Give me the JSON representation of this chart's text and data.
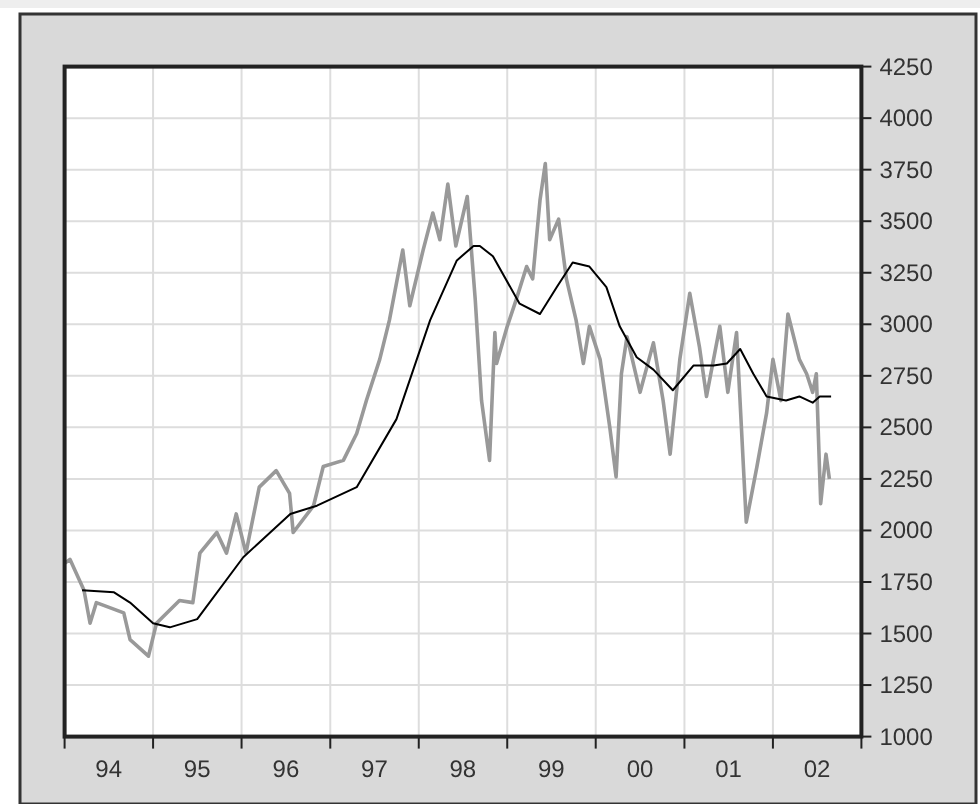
{
  "chart_data": {
    "type": "line",
    "xlim": [
      "1994-01-01",
      "2003-01-01"
    ],
    "xticks": [
      {
        "value": "1994-01-01",
        "label": null
      },
      {
        "value": "1994-07-02",
        "label": "94"
      },
      {
        "value": "1995-01-01",
        "label": null
      },
      {
        "value": "1995-07-02",
        "label": "95"
      },
      {
        "value": "1996-01-01",
        "label": null
      },
      {
        "value": "1996-07-02",
        "label": "96"
      },
      {
        "value": "1997-01-01",
        "label": null
      },
      {
        "value": "1997-07-02",
        "label": "97"
      },
      {
        "value": "1998-01-01",
        "label": null
      },
      {
        "value": "1998-07-02",
        "label": "98"
      },
      {
        "value": "1999-01-01",
        "label": null
      },
      {
        "value": "1999-07-02",
        "label": "99"
      },
      {
        "value": "2000-01-01",
        "label": null
      },
      {
        "value": "2000-07-02",
        "label": "00"
      },
      {
        "value": "2001-01-01",
        "label": null
      },
      {
        "value": "2001-07-02",
        "label": "01"
      },
      {
        "value": "2002-01-01",
        "label": null
      },
      {
        "value": "2002-07-02",
        "label": "02"
      },
      {
        "value": "2003-01-01",
        "label": null
      }
    ],
    "ylim": [
      1000,
      4250
    ],
    "yticks": [
      1000,
      1250,
      1500,
      1750,
      2000,
      2250,
      2500,
      2750,
      3000,
      3250,
      3500,
      3750,
      4000,
      4250
    ],
    "grid": true,
    "series": [
      {
        "color": "#999999",
        "x": [
          "1994-01-01",
          "1994-01-23",
          "1994-03-22",
          "1994-04-16",
          "1994-05-12",
          "1994-09-02",
          "1994-09-28",
          "1994-12-13",
          "1995-01-15",
          "1995-04-20",
          "1995-06-14",
          "1995-07-13",
          "1995-09-21",
          "1995-10-31",
          "1995-12-10",
          "1996-01-19",
          "1996-03-14",
          "1996-05-23",
          "1996-07-17",
          "1996-08-01",
          "1996-10-24",
          "1996-12-03",
          "1997-02-24",
          "1997-04-20",
          "1997-05-30",
          "1997-07-24",
          "1997-09-02",
          "1997-10-27",
          "1997-11-25",
          "1998-01-19",
          "1998-02-28",
          "1998-03-29",
          "1998-05-01",
          "1998-06-03",
          "1998-07-20",
          "1998-08-22",
          "1998-09-17",
          "1998-10-20",
          "1998-11-11",
          "1998-11-18",
          "1999-01-01",
          "1999-02-07",
          "1999-03-22",
          "1999-04-16",
          "1999-05-16",
          "1999-06-07",
          "1999-06-25",
          "1999-08-01",
          "1999-09-02",
          "1999-10-12",
          "1999-11-11",
          "1999-12-06",
          "2000-01-19",
          "2000-02-28",
          "2000-03-25",
          "2000-04-16",
          "2000-05-09",
          "2000-07-02",
          "2000-08-26",
          "2000-10-05",
          "2000-11-03",
          "2000-12-13",
          "2001-01-23",
          "2001-03-04",
          "2001-04-02",
          "2001-05-27",
          "2001-06-29",
          "2001-08-04",
          "2001-09-13",
          "2001-10-27",
          "2001-12-06",
          "2002-01-01",
          "2002-02-03",
          "2002-03-04",
          "2002-04-20",
          "2002-05-20",
          "2002-06-14",
          "2002-06-29",
          "2002-07-17",
          "2002-08-08",
          "2002-08-22"
        ],
        "values": [
          1840,
          1860,
          1710,
          1550,
          1650,
          1600,
          1470,
          1390,
          1550,
          1660,
          1650,
          1890,
          1990,
          1890,
          2080,
          1890,
          2210,
          2290,
          2180,
          1990,
          2120,
          2310,
          2340,
          2470,
          2630,
          2830,
          3020,
          3360,
          3090,
          3360,
          3540,
          3410,
          3680,
          3380,
          3620,
          3120,
          2630,
          2340,
          2960,
          2810,
          2990,
          3120,
          3280,
          3220,
          3600,
          3780,
          3410,
          3510,
          3220,
          3020,
          2810,
          2990,
          2830,
          2500,
          2260,
          2760,
          2940,
          2670,
          2910,
          2630,
          2370,
          2830,
          3150,
          2890,
          2650,
          2990,
          2670,
          2960,
          2040,
          2310,
          2570,
          2830,
          2630,
          3050,
          2830,
          2760,
          2670,
          2760,
          2130,
          2370,
          2250
        ]
      },
      {
        "color": "#000000",
        "x": [
          "1994-03-14",
          "1994-07-24",
          "1994-09-28",
          "1995-01-01",
          "1995-03-11",
          "1995-07-02",
          "1996-01-08",
          "1996-07-20",
          "1996-11-07",
          "1997-04-20",
          "1997-10-01",
          "1998-02-17",
          "1998-06-07",
          "1998-08-15",
          "1998-09-10",
          "1998-11-03",
          "1999-02-21",
          "1999-05-16",
          "1999-07-24",
          "1999-09-28",
          "1999-12-06",
          "2000-02-14",
          "2000-04-09",
          "2000-06-18",
          "2000-08-26",
          "2000-11-14",
          "2001-02-07",
          "2001-05-01",
          "2001-06-25",
          "2001-08-19",
          "2001-10-12",
          "2001-12-06",
          "2002-02-24",
          "2002-04-20",
          "2002-06-14",
          "2002-07-13",
          "2002-08-29"
        ],
        "values": [
          1710,
          1700,
          1650,
          1550,
          1530,
          1570,
          1870,
          2080,
          2120,
          2210,
          2540,
          3020,
          3310,
          3380,
          3380,
          3330,
          3100,
          3050,
          3180,
          3300,
          3280,
          3180,
          2990,
          2840,
          2780,
          2680,
          2800,
          2800,
          2810,
          2880,
          2760,
          2650,
          2630,
          2650,
          2620,
          2650,
          2650
        ]
      }
    ]
  }
}
